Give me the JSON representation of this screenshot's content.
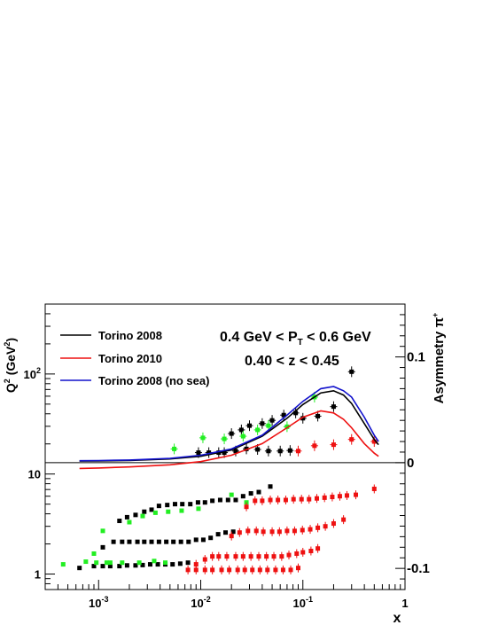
{
  "chart_data": {
    "type": "scatter",
    "xlabel": "x",
    "ylabel_left": "Q",
    "ylabel_left_sup": "2",
    "ylabel_left_unit": " (GeV",
    "ylabel_left_unit_sup": "2",
    "ylabel_left_close": ")",
    "ylabel_right": "Asymmetry π",
    "ylabel_right_sup": "+",
    "x_scale": "log",
    "xlim": [
      0.0003,
      1
    ],
    "x_ticks": [
      {
        "value": 0.001,
        "base": "10",
        "exp": "-3"
      },
      {
        "value": 0.01,
        "base": "10",
        "exp": "-2"
      },
      {
        "value": 0.1,
        "base": "10",
        "exp": "-1"
      },
      {
        "value": 1,
        "base": "1",
        "exp": ""
      }
    ],
    "left_axis": {
      "scale": "log",
      "ylim": [
        0.7,
        500
      ],
      "ticks": [
        {
          "value": 1,
          "base": "1",
          "exp": ""
        },
        {
          "value": 10,
          "base": "10",
          "exp": ""
        },
        {
          "value": 100,
          "base": "10",
          "exp": "2"
        }
      ]
    },
    "right_axis": {
      "scale": "linear",
      "ylim": [
        -0.12,
        0.15
      ],
      "ticks": [
        {
          "value": -0.1,
          "label": "-0.1"
        },
        {
          "value": 0,
          "label": "0"
        },
        {
          "value": 0.1,
          "label": "0.1"
        }
      ],
      "zero_line": 0
    },
    "annotations": [
      {
        "text": "0.4 GeV < P",
        "sub": "T",
        "after": " < 0.6 GeV"
      },
      {
        "text": "0.40 < z < 0.45",
        "sub": "",
        "after": ""
      }
    ],
    "legend": {
      "placement": "top-left",
      "entries": [
        {
          "label": "Torino 2008",
          "color": "#000000"
        },
        {
          "label": "Torino 2010",
          "color": "#ee1111"
        },
        {
          "label": "Torino 2008 (no sea)",
          "color": "#1111cc"
        }
      ]
    },
    "curves": [
      {
        "label": "Torino 2008",
        "color": "#000000",
        "points": [
          [
            0.00065,
            0.0015
          ],
          [
            0.001,
            0.0017
          ],
          [
            0.002,
            0.002
          ],
          [
            0.005,
            0.0035
          ],
          [
            0.01,
            0.006
          ],
          [
            0.02,
            0.012
          ],
          [
            0.04,
            0.025
          ],
          [
            0.07,
            0.042
          ],
          [
            0.1,
            0.055
          ],
          [
            0.15,
            0.066
          ],
          [
            0.2,
            0.068
          ],
          [
            0.25,
            0.064
          ],
          [
            0.3,
            0.056
          ],
          [
            0.4,
            0.037
          ],
          [
            0.5,
            0.022
          ],
          [
            0.55,
            0.017
          ]
        ]
      },
      {
        "label": "Torino 2010",
        "color": "#ee1111",
        "points": [
          [
            0.00065,
            -0.0055
          ],
          [
            0.001,
            -0.005
          ],
          [
            0.002,
            -0.004
          ],
          [
            0.005,
            -0.002
          ],
          [
            0.01,
            0.001
          ],
          [
            0.02,
            0.007
          ],
          [
            0.04,
            0.018
          ],
          [
            0.07,
            0.033
          ],
          [
            0.1,
            0.043
          ],
          [
            0.15,
            0.049
          ],
          [
            0.2,
            0.047
          ],
          [
            0.25,
            0.041
          ],
          [
            0.3,
            0.033
          ],
          [
            0.4,
            0.018
          ],
          [
            0.5,
            0.009
          ],
          [
            0.55,
            0.006
          ]
        ]
      },
      {
        "label": "Torino 2008 (no sea)",
        "color": "#1111cc",
        "points": [
          [
            0.00065,
            0.0018
          ],
          [
            0.001,
            0.002
          ],
          [
            0.002,
            0.0025
          ],
          [
            0.005,
            0.004
          ],
          [
            0.01,
            0.007
          ],
          [
            0.02,
            0.013
          ],
          [
            0.04,
            0.026
          ],
          [
            0.07,
            0.045
          ],
          [
            0.1,
            0.058
          ],
          [
            0.15,
            0.07
          ],
          [
            0.2,
            0.072
          ],
          [
            0.25,
            0.068
          ],
          [
            0.3,
            0.062
          ],
          [
            0.4,
            0.043
          ],
          [
            0.5,
            0.026
          ],
          [
            0.55,
            0.02
          ]
        ]
      }
    ],
    "asymmetry_points": {
      "black": [
        [
          0.017,
          0.0095
        ],
        [
          0.022,
          0.011
        ],
        [
          0.028,
          0.013
        ],
        [
          0.036,
          0.0125
        ],
        [
          0.046,
          0.011
        ],
        [
          0.06,
          0.011
        ],
        [
          0.075,
          0.0115
        ],
        [
          0.012,
          0.0095
        ],
        [
          0.015,
          0.0095
        ],
        [
          0.02,
          0.0275
        ],
        [
          0.025,
          0.031
        ],
        [
          0.03,
          0.035
        ],
        [
          0.04,
          0.037
        ],
        [
          0.05,
          0.04
        ],
        [
          0.065,
          0.045
        ],
        [
          0.085,
          0.047
        ],
        [
          0.1,
          0.042
        ],
        [
          0.14,
          0.044
        ],
        [
          0.2,
          0.053
        ],
        [
          0.3,
          0.086
        ],
        [
          0.0095,
          0.0095
        ]
      ],
      "green": [
        [
          0.0055,
          0.013
        ],
        [
          0.0105,
          0.0235
        ],
        [
          0.017,
          0.0225
        ],
        [
          0.026,
          0.025
        ],
        [
          0.036,
          0.031
        ],
        [
          0.046,
          0.035
        ],
        [
          0.07,
          0.034
        ],
        [
          0.13,
          0.062
        ]
      ],
      "red": [
        [
          0.09,
          0.011
        ],
        [
          0.13,
          0.016
        ],
        [
          0.2,
          0.017
        ],
        [
          0.3,
          0.022
        ],
        [
          0.5,
          0.02
        ]
      ]
    },
    "q2_bands": [
      {
        "color": "black",
        "points": [
          [
            0.00065,
            1.15
          ],
          [
            0.0009,
            1.2
          ],
          [
            0.0011,
            1.2
          ],
          [
            0.0013,
            1.2
          ],
          [
            0.0016,
            1.2
          ],
          [
            0.0019,
            1.22
          ],
          [
            0.0023,
            1.22
          ],
          [
            0.0027,
            1.23
          ],
          [
            0.0032,
            1.25
          ],
          [
            0.0038,
            1.25
          ],
          [
            0.0045,
            1.25
          ],
          [
            0.0053,
            1.25
          ],
          [
            0.0063,
            1.27
          ],
          [
            0.0075,
            1.3
          ]
        ]
      },
      {
        "color": "green",
        "points": [
          [
            0.00045,
            1.25
          ],
          [
            0.00075,
            1.33
          ],
          [
            0.00095,
            1.3
          ],
          [
            0.0012,
            1.3
          ],
          [
            0.0017,
            1.3
          ],
          [
            0.0025,
            1.3
          ],
          [
            0.0035,
            1.35
          ],
          [
            0.0045,
            1.3
          ]
        ]
      },
      {
        "color": "black",
        "points": [
          [
            0.0011,
            1.85
          ],
          [
            0.0014,
            2.1
          ],
          [
            0.0017,
            2.1
          ],
          [
            0.002,
            2.1
          ],
          [
            0.0024,
            2.1
          ],
          [
            0.0028,
            2.1
          ],
          [
            0.0033,
            2.1
          ],
          [
            0.0039,
            2.1
          ],
          [
            0.0046,
            2.1
          ],
          [
            0.0054,
            2.1
          ],
          [
            0.0064,
            2.1
          ],
          [
            0.0076,
            2.1
          ],
          [
            0.009,
            2.2
          ],
          [
            0.0106,
            2.2
          ],
          [
            0.0125,
            2.3
          ],
          [
            0.0148,
            2.5
          ],
          [
            0.0175,
            2.6
          ],
          [
            0.0208,
            2.65
          ]
        ]
      },
      {
        "color": "green",
        "points": [
          [
            0.0009,
            1.6
          ],
          [
            0.0011,
            2.7
          ],
          [
            0.0013,
            1.3
          ]
        ]
      },
      {
        "color": "black",
        "points": [
          [
            0.0016,
            3.4
          ],
          [
            0.0019,
            3.7
          ],
          [
            0.0023,
            3.9
          ],
          [
            0.0028,
            4.2
          ],
          [
            0.0033,
            4.4
          ],
          [
            0.0039,
            4.8
          ],
          [
            0.0047,
            4.9
          ],
          [
            0.0056,
            5
          ],
          [
            0.0066,
            5
          ],
          [
            0.0079,
            5
          ],
          [
            0.0094,
            5.2
          ],
          [
            0.011,
            5.2
          ],
          [
            0.013,
            5.4
          ],
          [
            0.0155,
            5.5
          ],
          [
            0.0185,
            5.5
          ],
          [
            0.022,
            5.5
          ],
          [
            0.026,
            6
          ],
          [
            0.031,
            6.4
          ],
          [
            0.037,
            6.6
          ],
          [
            0.048,
            7.5
          ]
        ]
      },
      {
        "color": "green",
        "points": [
          [
            0.002,
            3.3
          ],
          [
            0.0027,
            3.8
          ],
          [
            0.0036,
            4.1
          ],
          [
            0.0048,
            4.2
          ],
          [
            0.0065,
            4.3
          ],
          [
            0.0095,
            4.5
          ],
          [
            0.02,
            6.2
          ],
          [
            0.028,
            5.2
          ]
        ]
      },
      {
        "color": "red",
        "points": [
          [
            0.0075,
            1.1
          ],
          [
            0.009,
            1.1
          ],
          [
            0.011,
            1.1
          ],
          [
            0.013,
            1.1
          ],
          [
            0.016,
            1.1
          ],
          [
            0.019,
            1.1
          ],
          [
            0.023,
            1.1
          ],
          [
            0.027,
            1.1
          ],
          [
            0.032,
            1.1
          ],
          [
            0.038,
            1.1
          ],
          [
            0.045,
            1.1
          ],
          [
            0.054,
            1.1
          ],
          [
            0.064,
            1.1
          ],
          [
            0.076,
            1.1
          ],
          [
            0.09,
            1.15
          ]
        ]
      },
      {
        "color": "red",
        "points": [
          [
            0.009,
            1.25
          ],
          [
            0.011,
            1.4
          ],
          [
            0.013,
            1.5
          ],
          [
            0.015,
            1.5
          ],
          [
            0.018,
            1.5
          ],
          [
            0.022,
            1.5
          ],
          [
            0.026,
            1.5
          ],
          [
            0.031,
            1.5
          ],
          [
            0.037,
            1.5
          ],
          [
            0.044,
            1.5
          ],
          [
            0.052,
            1.5
          ],
          [
            0.062,
            1.5
          ],
          [
            0.073,
            1.55
          ],
          [
            0.087,
            1.6
          ],
          [
            0.1,
            1.65
          ],
          [
            0.12,
            1.7
          ],
          [
            0.14,
            1.8
          ]
        ]
      },
      {
        "color": "red",
        "points": [
          [
            0.02,
            2.4
          ],
          [
            0.024,
            2.6
          ],
          [
            0.029,
            2.7
          ],
          [
            0.035,
            2.7
          ],
          [
            0.041,
            2.65
          ],
          [
            0.05,
            2.65
          ],
          [
            0.059,
            2.65
          ],
          [
            0.07,
            2.7
          ],
          [
            0.083,
            2.7
          ],
          [
            0.099,
            2.75
          ],
          [
            0.118,
            2.8
          ],
          [
            0.14,
            2.9
          ],
          [
            0.166,
            3.0
          ],
          [
            0.2,
            3.2
          ],
          [
            0.25,
            3.5
          ]
        ]
      },
      {
        "color": "red",
        "points": [
          [
            0.028,
            4.7
          ],
          [
            0.034,
            5.4
          ],
          [
            0.04,
            5.4
          ],
          [
            0.048,
            5.5
          ],
          [
            0.057,
            5.5
          ],
          [
            0.068,
            5.5
          ],
          [
            0.081,
            5.6
          ],
          [
            0.097,
            5.6
          ],
          [
            0.115,
            5.6
          ],
          [
            0.137,
            5.7
          ],
          [
            0.163,
            5.8
          ],
          [
            0.194,
            5.9
          ],
          [
            0.23,
            6.0
          ],
          [
            0.27,
            6.1
          ],
          [
            0.33,
            6.2
          ],
          [
            0.5,
            7.1
          ]
        ]
      }
    ]
  },
  "colors": {
    "black": "#000000",
    "green": "#22ee22",
    "red": "#ee1111"
  }
}
